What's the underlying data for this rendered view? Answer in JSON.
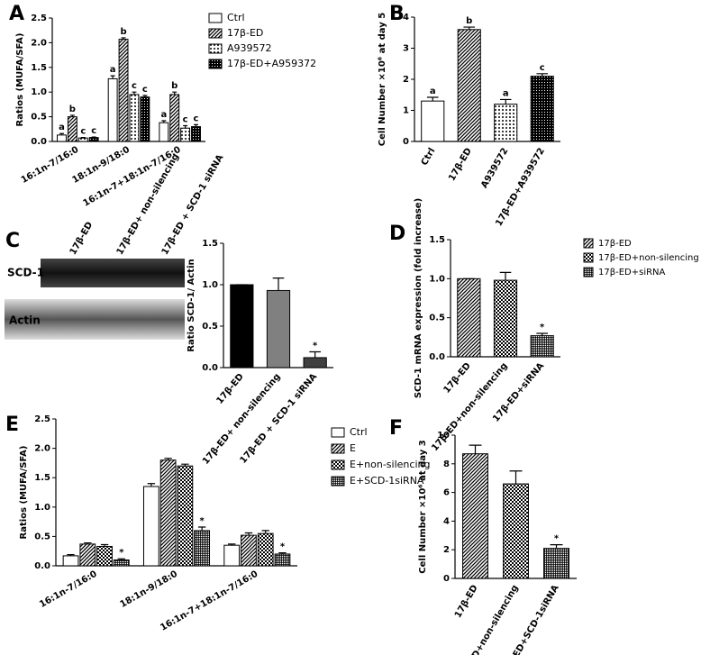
{
  "chart_data": [
    {
      "panel": "A",
      "type": "bar",
      "ylabel": "Ratios (MUFA/SFA)",
      "categories": [
        "16:1n-7/16:0",
        "18:1n-9/18:0",
        "16:1n-7+18:1n-7/16:0"
      ],
      "ylim": [
        0,
        2.5
      ],
      "yticks": [
        {
          "value": 0,
          "label": "0.0"
        },
        0.5,
        {
          "value": 1,
          "label": "1.0"
        },
        1.5,
        {
          "value": 2,
          "label": "2.0"
        },
        2.5
      ],
      "legend": "upper right",
      "series": [
        {
          "name": "Ctrl",
          "color": "#000000",
          "pattern": "open",
          "values": [
            0.13,
            1.27,
            0.38
          ],
          "errors": [
            0.03,
            0.06,
            0.04
          ],
          "sig_labels": [
            "a",
            "a",
            "a"
          ]
        },
        {
          "name": "17β-ED",
          "color": "#000000",
          "pattern": "hatch",
          "values": [
            0.5,
            2.07,
            0.95
          ],
          "errors": [
            0.03,
            0.03,
            0.05
          ],
          "sig_labels": [
            "b",
            "b",
            "b"
          ]
        },
        {
          "name": "A939572",
          "color": "#000000",
          "pattern": "dots",
          "values": [
            0.07,
            0.95,
            0.27
          ],
          "errors": [
            0.01,
            0.05,
            0.05
          ],
          "sig_labels": [
            "c",
            "c",
            "c"
          ]
        },
        {
          "name": "17β-ED+A959372",
          "color": "#000000",
          "pattern": "dense-dots",
          "values": [
            0.08,
            0.9,
            0.3
          ],
          "errors": [
            0.01,
            0.03,
            0.04
          ],
          "sig_labels": [
            "c",
            "c",
            "c"
          ]
        }
      ]
    },
    {
      "panel": "B",
      "type": "bar",
      "ylabel": "Cell Number ×10⁶ at day 5",
      "categories": [
        "Ctrl",
        "17β-ED",
        "A939572",
        "17β-ED+A939572"
      ],
      "ylim": [
        0,
        4
      ],
      "yticks": [
        0,
        1,
        2,
        3,
        4
      ],
      "values": [
        1.3,
        3.6,
        1.2,
        2.1
      ],
      "errors": [
        0.12,
        0.08,
        0.15,
        0.08
      ],
      "sig_labels": [
        "a",
        "b",
        "a",
        "c"
      ],
      "colors": [
        "#000000",
        "#000000",
        "#000000",
        "#000000"
      ],
      "patterns": [
        "open",
        "hatch",
        "dots",
        "dense-dots"
      ]
    },
    {
      "panel": "C",
      "type": "bar",
      "ylabel": "Ratio SCD-1/ Actin",
      "blot": {
        "lanes": [
          "17β-ED",
          "17β-ED+ non-silencing",
          "17β-ED + SCD-1 siRNA"
        ],
        "rows": [
          "SCD-1",
          "Actin"
        ]
      },
      "categories": [
        "17β-ED",
        "17β-ED+ non-silencing",
        "17β-ED + SCD-1 siRNA"
      ],
      "ylim": [
        0,
        1.5
      ],
      "yticks": [
        {
          "value": 0,
          "label": "0.0"
        },
        0.5,
        {
          "value": 1,
          "label": "1.0"
        },
        1.5
      ],
      "values": [
        1.0,
        0.93,
        0.12
      ],
      "errors": [
        0,
        0.15,
        0.07
      ],
      "sig_labels": [
        null,
        null,
        "*"
      ],
      "colors": [
        "#000000",
        "#808080",
        "#404040"
      ],
      "patterns": [
        "solid",
        "solid",
        "solid"
      ]
    },
    {
      "panel": "D",
      "type": "bar",
      "ylabel": "SCD-1 mRNA expression (fold increase)",
      "categories": [
        "17β-ED",
        "17β-ED+non-silencing",
        "17β-ED+siRNA"
      ],
      "legend": "upper right",
      "ylim": [
        0,
        1.5
      ],
      "yticks": [
        {
          "value": 0,
          "label": "0.0"
        },
        0.5,
        {
          "value": 1,
          "label": "1.0"
        },
        1.5
      ],
      "values": [
        1.0,
        0.98,
        0.27
      ],
      "errors": [
        0,
        0.1,
        0.03
      ],
      "sig_labels": [
        null,
        null,
        "*"
      ],
      "colors": [
        "#000000",
        "#000000",
        "#000000"
      ],
      "patterns": [
        "hatch",
        "checker",
        "grid"
      ]
    },
    {
      "panel": "E",
      "type": "bar",
      "ylabel": "Ratios (MUFA/SFA)",
      "categories": [
        "16:1n-7/16:0",
        "18:1n-9/18:0",
        "16:1n-7+18:1n-7/16:0"
      ],
      "ylim": [
        0,
        2.5
      ],
      "yticks": [
        {
          "value": 0,
          "label": "0.0"
        },
        0.5,
        {
          "value": 1,
          "label": "1.0"
        },
        1.5,
        {
          "value": 2,
          "label": "2.0"
        },
        2.5
      ],
      "legend": "upper right",
      "series": [
        {
          "name": "Ctrl",
          "color": "#000000",
          "pattern": "open",
          "values": [
            0.17,
            1.35,
            0.35
          ],
          "errors": [
            0.02,
            0.05,
            0.02
          ]
        },
        {
          "name": "E",
          "color": "#000000",
          "pattern": "hatch",
          "values": [
            0.37,
            1.8,
            0.52
          ],
          "errors": [
            0.02,
            0.03,
            0.04
          ]
        },
        {
          "name": "E+non-silencing",
          "color": "#000000",
          "pattern": "checker",
          "values": [
            0.33,
            1.7,
            0.55
          ],
          "errors": [
            0.03,
            0.03,
            0.05
          ]
        },
        {
          "name": "E+SCD-1siRNA",
          "color": "#000000",
          "pattern": "grid",
          "values": [
            0.1,
            0.6,
            0.2
          ],
          "errors": [
            0.02,
            0.06,
            0.02
          ],
          "sig_labels": [
            "*",
            "*",
            "*"
          ]
        }
      ]
    },
    {
      "panel": "F",
      "type": "bar",
      "ylabel": "Cell Number ×10⁶ at day 3",
      "categories": [
        "17β-ED",
        "17β-ED+non-silencing",
        "17β-ED+SCD-1siRNA"
      ],
      "ylim": [
        0,
        10
      ],
      "yticks": [
        0,
        2,
        4,
        6,
        8,
        10
      ],
      "values": [
        8.7,
        6.6,
        2.1
      ],
      "errors": [
        0.6,
        0.9,
        0.25
      ],
      "sig_labels": [
        null,
        null,
        "*"
      ],
      "colors": [
        "#000000",
        "#000000",
        "#000000"
      ],
      "patterns": [
        "hatch",
        "checker",
        "grid"
      ]
    }
  ]
}
